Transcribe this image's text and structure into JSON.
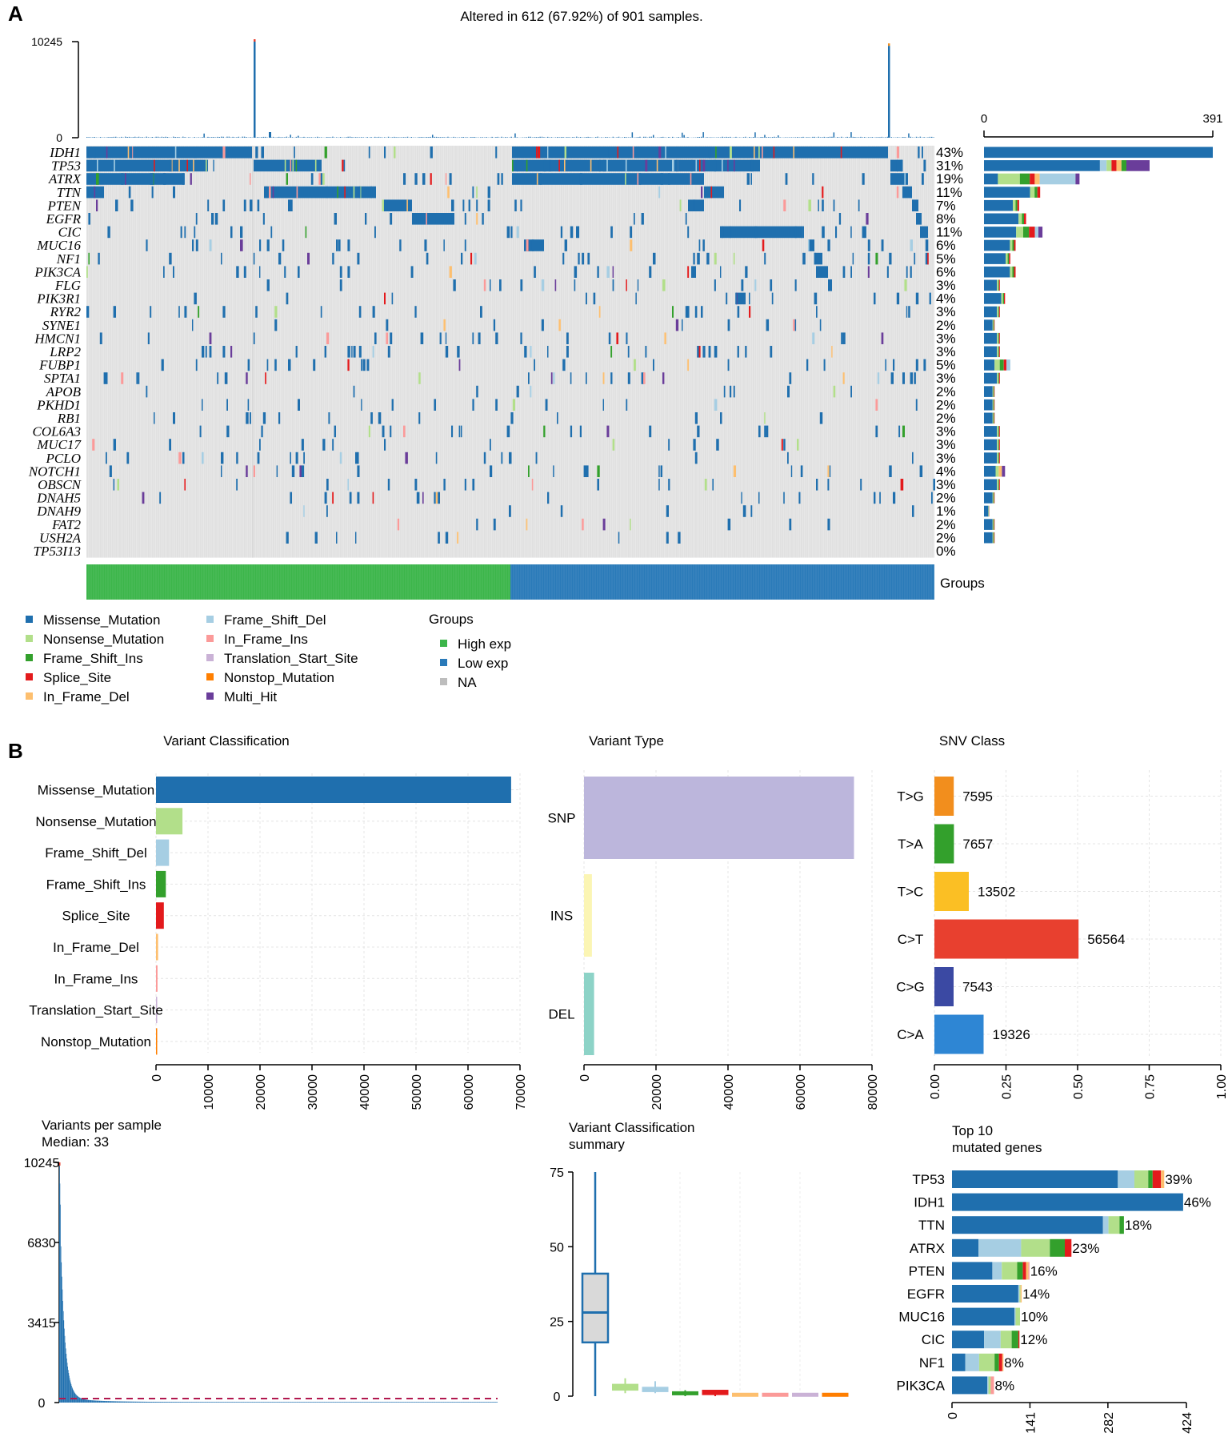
{
  "panel_labels": {
    "a": "A",
    "b": "B"
  },
  "colors": {
    "Missense_Mutation": "#1f6fae",
    "Nonsense_Mutation": "#b2df8a",
    "Frame_Shift_Ins": "#33a02c",
    "Splice_Site": "#e31a1c",
    "In_Frame_Del": "#fdbf6f",
    "Frame_Shift_Del": "#a6cee3",
    "In_Frame_Ins": "#fb9a99",
    "Translation_Start_Site": "#cab2d6",
    "Nonstop_Mutation": "#ff7f00",
    "Multi_Hit": "#6a3d9a",
    "High exp": "#3cb54a",
    "Low exp": "#2a7ab9",
    "NA": "#bdbdbd",
    "background": "#e0e0e0"
  },
  "chart_data": [
    {
      "type": "heatmap",
      "name": "oncoplot",
      "title": "Altered in 612 (67.92%) of 901 samples.",
      "top_axis": {
        "max_label": "10245",
        "min_label": "0",
        "max": 10245
      },
      "right_axis": {
        "min_label": "0",
        "max_label": "391",
        "max": 391
      },
      "genes": [
        "IDH1",
        "TP53",
        "ATRX",
        "TTN",
        "PTEN",
        "EGFR",
        "CIC",
        "MUC16",
        "NF1",
        "PIK3CA",
        "FLG",
        "PIK3R1",
        "RYR2",
        "SYNE1",
        "HMCN1",
        "LRP2",
        "FUBP1",
        "SPTA1",
        "APOB",
        "PKHD1",
        "RB1",
        "COL6A3",
        "MUC17",
        "PCLO",
        "NOTCH1",
        "OBSCN",
        "DNAH5",
        "DNAH9",
        "FAT2",
        "USH2A",
        "TP53I13"
      ],
      "percentages": [
        "43%",
        "31%",
        "19%",
        "11%",
        "7%",
        "8%",
        "11%",
        "6%",
        "5%",
        "6%",
        "3%",
        "4%",
        "3%",
        "2%",
        "3%",
        "3%",
        "5%",
        "3%",
        "2%",
        "2%",
        "2%",
        "3%",
        "3%",
        "3%",
        "4%",
        "3%",
        "2%",
        "1%",
        "2%",
        "2%",
        "0%"
      ],
      "right_bar_counts": [
        391,
        283,
        170,
        96,
        60,
        72,
        100,
        54,
        45,
        54,
        27,
        36,
        27,
        18,
        27,
        27,
        45,
        27,
        18,
        18,
        18,
        27,
        27,
        27,
        36,
        27,
        18,
        9,
        18,
        18,
        0
      ],
      "groups_label": "Groups",
      "groups": [
        {
          "name": "High exp",
          "fraction": 0.5
        },
        {
          "name": "Low exp",
          "fraction": 0.5
        }
      ],
      "legend_groups_title": "Groups",
      "legend_variants": [
        "Missense_Mutation",
        "Nonsense_Mutation",
        "Frame_Shift_Ins",
        "Splice_Site",
        "In_Frame_Del",
        "Frame_Shift_Del",
        "In_Frame_Ins",
        "Translation_Start_Site",
        "Nonstop_Mutation",
        "Multi_Hit"
      ],
      "legend_groups": [
        "High exp",
        "Low exp",
        "NA"
      ]
    },
    {
      "type": "bar",
      "name": "variant-classification",
      "title": "Variant Classification",
      "categories": [
        "Missense_Mutation",
        "Nonsense_Mutation",
        "Frame_Shift_Del",
        "Frame_Shift_Ins",
        "Splice_Site",
        "In_Frame_Del",
        "In_Frame_Ins",
        "Translation_Start_Site",
        "Nonstop_Mutation"
      ],
      "values": [
        68300,
        5100,
        2500,
        1900,
        1500,
        400,
        300,
        100,
        100
      ],
      "xlim": [
        0,
        70000
      ],
      "ticks": [
        0,
        10000,
        20000,
        30000,
        40000,
        50000,
        60000,
        70000
      ]
    },
    {
      "type": "bar",
      "name": "variant-type",
      "title": "Variant Type",
      "categories": [
        "SNP",
        "INS",
        "DEL"
      ],
      "values": [
        75000,
        2200,
        2800
      ],
      "colors": [
        "#bcb6dc",
        "#fbf5b4",
        "#8dd3c7"
      ],
      "xlim": [
        0,
        80000
      ],
      "ticks": [
        0,
        20000,
        40000,
        60000,
        80000
      ]
    },
    {
      "type": "bar",
      "name": "snv-class",
      "title": "SNV Class",
      "categories": [
        "T>G",
        "T>A",
        "T>C",
        "C>T",
        "C>G",
        "C>A"
      ],
      "counts": [
        "7595",
        "7657",
        "13502",
        "56564",
        "7543",
        "19326"
      ],
      "values": [
        0.0676,
        0.0681,
        0.1201,
        0.5033,
        0.0671,
        0.1719
      ],
      "colors": [
        "#f28e1d",
        "#33a02c",
        "#fbbf24",
        "#e8402f",
        "#3b49a3",
        "#2e86d4"
      ],
      "xlim": [
        0,
        1
      ],
      "ticks": [
        "0.00",
        "0.25",
        "0.50",
        "0.75",
        "1.00"
      ]
    },
    {
      "type": "bar",
      "name": "variants-per-sample",
      "title": "Variants per sample",
      "subtitle": "Median: 33",
      "ylim": [
        0,
        10245
      ],
      "yticks": [
        "0",
        "3415",
        "6830",
        "10245"
      ],
      "median": 33,
      "n_samples": 901
    },
    {
      "type": "box",
      "name": "variant-classification-summary",
      "title": "Variant Classification",
      "subtitle": "summary",
      "ylim": [
        0,
        75
      ],
      "yticks": [
        "0",
        "25",
        "50",
        "75"
      ],
      "boxes": [
        {
          "class": "Missense_Mutation",
          "min": 0,
          "q1": 18,
          "median": 28,
          "q3": 41,
          "max": 75
        },
        {
          "class": "Nonsense_Mutation",
          "min": 1,
          "q1": 2,
          "median": 3,
          "q3": 4,
          "max": 6
        },
        {
          "class": "Frame_Shift_Del",
          "min": 1,
          "q1": 1.5,
          "median": 2,
          "q3": 3,
          "max": 5
        },
        {
          "class": "Frame_Shift_Ins",
          "min": 0,
          "q1": 0.5,
          "median": 1,
          "q3": 1.5,
          "max": 2
        },
        {
          "class": "Splice_Site",
          "min": 0,
          "q1": 0.5,
          "median": 1,
          "q3": 2,
          "max": 2
        },
        {
          "class": "In_Frame_Del",
          "min": 0,
          "q1": 0.3,
          "median": 0.6,
          "q3": 1,
          "max": 1
        },
        {
          "class": "In_Frame_Ins",
          "min": 0,
          "q1": 0.3,
          "median": 0.6,
          "q3": 1,
          "max": 1
        },
        {
          "class": "Translation_Start_Site",
          "min": 0,
          "q1": 0.3,
          "median": 0.6,
          "q3": 1,
          "max": 1
        },
        {
          "class": "Nonstop_Mutation",
          "min": 0,
          "q1": 0.3,
          "median": 0.6,
          "q3": 1,
          "max": 1
        }
      ]
    },
    {
      "type": "bar",
      "name": "top10-mutated-genes",
      "title": "Top 10",
      "subtitle": "mutated genes",
      "xlim": [
        0,
        424
      ],
      "ticks": [
        "0",
        "141",
        "282",
        "424"
      ],
      "genes": [
        "TP53",
        "IDH1",
        "TTN",
        "ATRX",
        "PTEN",
        "EGFR",
        "MUC16",
        "CIC",
        "NF1",
        "PIK3CA"
      ],
      "labels": [
        "39%",
        "46%",
        "18%",
        "23%",
        "16%",
        "14%",
        "10%",
        "12%",
        "8%",
        "8%"
      ],
      "stack_order": [
        "Missense_Mutation",
        "Frame_Shift_Del",
        "Nonsense_Mutation",
        "Frame_Shift_Ins",
        "Splice_Site",
        "In_Frame_Del",
        "In_Frame_Ins"
      ],
      "stacks": [
        [
          300,
          30,
          25,
          8,
          15,
          6,
          0
        ],
        [
          418,
          0,
          0,
          0,
          0,
          0,
          0
        ],
        [
          273,
          10,
          20,
          8,
          0,
          0,
          0
        ],
        [
          48,
          77,
          52,
          27,
          12,
          0,
          0
        ],
        [
          73,
          17,
          28,
          10,
          6,
          4,
          2
        ],
        [
          120,
          2,
          2,
          0,
          0,
          2,
          0
        ],
        [
          113,
          2,
          8,
          0,
          0,
          0,
          0
        ],
        [
          58,
          30,
          20,
          12,
          2,
          0,
          0
        ],
        [
          24,
          25,
          28,
          8,
          6,
          2,
          0
        ],
        [
          64,
          2,
          4,
          0,
          0,
          0,
          6
        ]
      ]
    }
  ]
}
